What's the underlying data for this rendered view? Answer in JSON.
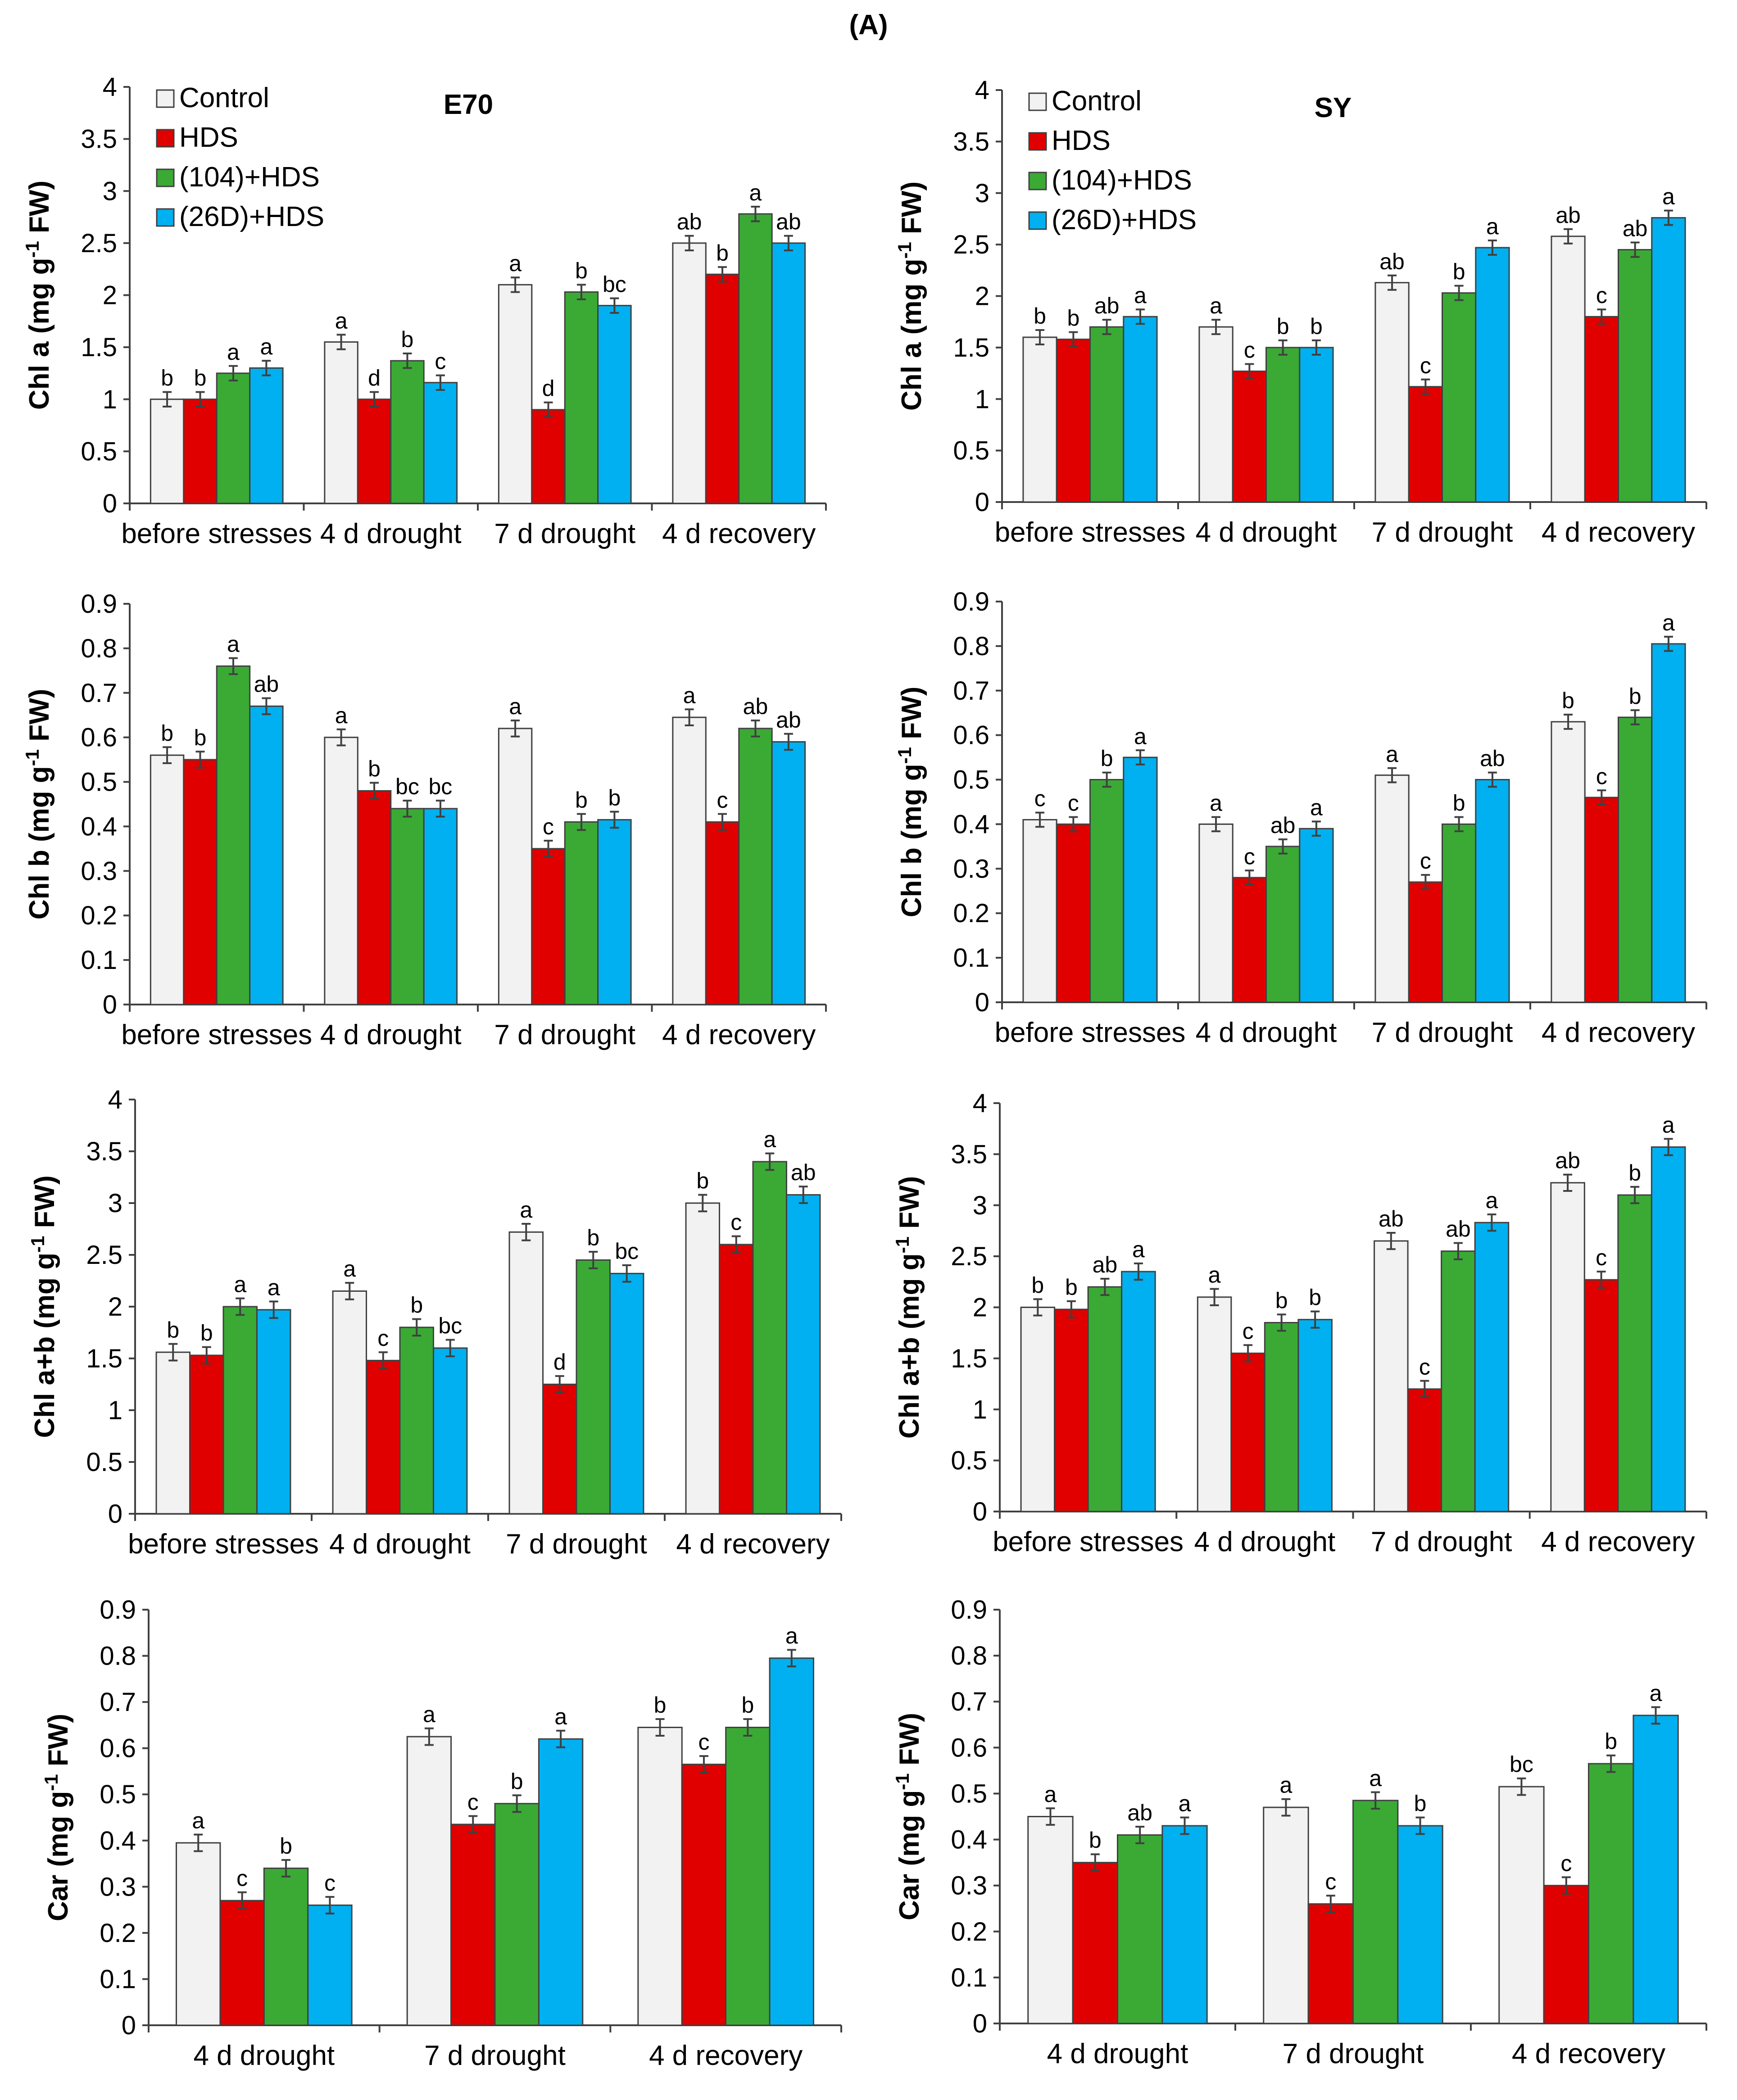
{
  "figure_title": "(A)",
  "colors": {
    "Control": "#f2f2f2",
    "HDS": "#e00000",
    "(104)+HDS": "#3aaa35",
    "(26D)+HDS": "#00b0f0",
    "axis": "#404040",
    "outline": "#404040"
  },
  "legend": [
    "Control",
    "HDS",
    "(104)+HDS",
    "(26D)+HDS"
  ],
  "chart_data": [
    {
      "type": "bar",
      "title": "E70",
      "ylabel": "Chl a (mg g-1 FW)",
      "ylim": [
        0,
        4
      ],
      "ystep": 0.5,
      "tick_decimals": 1,
      "err": 0.07,
      "legend": "top-left",
      "categories": [
        "before stresses",
        "4 d drought",
        "7 d drought",
        "4 d recovery"
      ],
      "series": [
        {
          "name": "Control",
          "values": [
            1.0,
            1.55,
            2.1,
            2.5
          ],
          "letters": [
            "b",
            "a",
            "a",
            "ab"
          ]
        },
        {
          "name": "HDS",
          "values": [
            1.0,
            1.0,
            0.9,
            2.2
          ],
          "letters": [
            "b",
            "d",
            "d",
            "b"
          ]
        },
        {
          "name": "(104)+HDS",
          "values": [
            1.25,
            1.37,
            2.03,
            2.78
          ],
          "letters": [
            "a",
            "b",
            "b",
            "a"
          ]
        },
        {
          "name": "(26D)+HDS",
          "values": [
            1.3,
            1.16,
            1.9,
            2.5
          ],
          "letters": [
            "a",
            "c",
            "bc",
            "ab"
          ]
        }
      ]
    },
    {
      "type": "bar",
      "title": "SY",
      "ylabel": "Chl a (mg g-1 FW)",
      "ylim": [
        0,
        4
      ],
      "ystep": 0.5,
      "tick_decimals": 1,
      "err": 0.07,
      "legend": "top-left",
      "categories": [
        "before stresses",
        "4 d drought",
        "7 d drought",
        "4 d recovery"
      ],
      "series": [
        {
          "name": "Control",
          "values": [
            1.6,
            1.7,
            2.13,
            2.58
          ],
          "letters": [
            "b",
            "a",
            "ab",
            "ab"
          ]
        },
        {
          "name": "HDS",
          "values": [
            1.58,
            1.27,
            1.12,
            1.8
          ],
          "letters": [
            "b",
            "c",
            "c",
            "c"
          ]
        },
        {
          "name": "(104)+HDS",
          "values": [
            1.7,
            1.5,
            2.03,
            2.45
          ],
          "letters": [
            "ab",
            "b",
            "b",
            "ab"
          ]
        },
        {
          "name": "(26D)+HDS",
          "values": [
            1.8,
            1.5,
            2.47,
            2.76
          ],
          "letters": [
            "a",
            "b",
            "a",
            "a"
          ]
        }
      ]
    },
    {
      "type": "bar",
      "title": "",
      "ylabel": "Chl b (mg g-1 FW)",
      "ylim": [
        0,
        0.9
      ],
      "ystep": 0.1,
      "tick_decimals": 1,
      "err": 0.018,
      "categories": [
        "before stresses",
        "4 d drought",
        "7 d drought",
        "4 d recovery"
      ],
      "series": [
        {
          "name": "Control",
          "values": [
            0.56,
            0.6,
            0.62,
            0.645
          ],
          "letters": [
            "b",
            "a",
            "a",
            "a"
          ]
        },
        {
          "name": "HDS",
          "values": [
            0.55,
            0.48,
            0.35,
            0.41
          ],
          "letters": [
            "b",
            "b",
            "c",
            "c"
          ]
        },
        {
          "name": "(104)+HDS",
          "values": [
            0.76,
            0.44,
            0.41,
            0.62
          ],
          "letters": [
            "a",
            "bc",
            "b",
            "ab"
          ]
        },
        {
          "name": "(26D)+HDS",
          "values": [
            0.67,
            0.44,
            0.415,
            0.59
          ],
          "letters": [
            "ab",
            "bc",
            "b",
            "ab"
          ]
        }
      ]
    },
    {
      "type": "bar",
      "title": "",
      "ylabel": "Chl b (mg g-1 FW)",
      "ylim": [
        0,
        0.9
      ],
      "ystep": 0.1,
      "tick_decimals": 1,
      "err": 0.016,
      "categories": [
        "before stresses",
        "4 d drought",
        "7 d drought",
        "4 d recovery"
      ],
      "series": [
        {
          "name": "Control",
          "values": [
            0.41,
            0.4,
            0.51,
            0.63
          ],
          "letters": [
            "c",
            "a",
            "a",
            "b"
          ]
        },
        {
          "name": "HDS",
          "values": [
            0.4,
            0.28,
            0.27,
            0.46
          ],
          "letters": [
            "c",
            "c",
            "c",
            "c"
          ]
        },
        {
          "name": "(104)+HDS",
          "values": [
            0.5,
            0.35,
            0.4,
            0.64
          ],
          "letters": [
            "b",
            "ab",
            "b",
            "b"
          ]
        },
        {
          "name": "(26D)+HDS",
          "values": [
            0.55,
            0.39,
            0.5,
            0.805
          ],
          "letters": [
            "a",
            "a",
            "ab",
            "a"
          ]
        }
      ]
    },
    {
      "type": "bar",
      "title": "",
      "ylabel": "Chl a+b (mg g-1 FW)",
      "ylim": [
        0,
        4
      ],
      "ystep": 0.5,
      "tick_decimals": 1,
      "err": 0.08,
      "categories": [
        "before stresses",
        "4 d drought",
        "7 d drought",
        "4 d recovery"
      ],
      "series": [
        {
          "name": "Control",
          "values": [
            1.56,
            2.15,
            2.72,
            3.0
          ],
          "letters": [
            "b",
            "a",
            "a",
            "b"
          ]
        },
        {
          "name": "HDS",
          "values": [
            1.53,
            1.48,
            1.25,
            2.6
          ],
          "letters": [
            "b",
            "c",
            "d",
            "c"
          ]
        },
        {
          "name": "(104)+HDS",
          "values": [
            2.0,
            1.8,
            2.45,
            3.4
          ],
          "letters": [
            "a",
            "b",
            "b",
            "a"
          ]
        },
        {
          "name": "(26D)+HDS",
          "values": [
            1.97,
            1.6,
            2.32,
            3.08
          ],
          "letters": [
            "a",
            "bc",
            "bc",
            "ab"
          ]
        }
      ]
    },
    {
      "type": "bar",
      "title": "",
      "ylabel": "Chl a+b (mg g-1 FW)",
      "ylim": [
        0,
        4
      ],
      "ystep": 0.5,
      "tick_decimals": 1,
      "err": 0.08,
      "categories": [
        "before stresses",
        "4 d drought",
        "7 d drought",
        "4 d recovery"
      ],
      "series": [
        {
          "name": "Control",
          "values": [
            2.0,
            2.1,
            2.65,
            3.22
          ],
          "letters": [
            "b",
            "a",
            "ab",
            "ab"
          ]
        },
        {
          "name": "HDS",
          "values": [
            1.98,
            1.55,
            1.2,
            2.27
          ],
          "letters": [
            "b",
            "c",
            "c",
            "c"
          ]
        },
        {
          "name": "(104)+HDS",
          "values": [
            2.2,
            1.85,
            2.55,
            3.1
          ],
          "letters": [
            "ab",
            "b",
            "ab",
            "b"
          ]
        },
        {
          "name": "(26D)+HDS",
          "values": [
            2.35,
            1.88,
            2.83,
            3.57
          ],
          "letters": [
            "a",
            "b",
            "a",
            "a"
          ]
        }
      ]
    },
    {
      "type": "bar",
      "title": "",
      "ylabel": "Car (mg g-1 FW)",
      "ylim": [
        0,
        0.9
      ],
      "ystep": 0.1,
      "tick_decimals": 1,
      "err": 0.018,
      "categories": [
        "4 d drought",
        "7 d drought",
        "4 d recovery"
      ],
      "series": [
        {
          "name": "Control",
          "values": [
            0.395,
            0.625,
            0.645
          ],
          "letters": [
            "a",
            "a",
            "b"
          ]
        },
        {
          "name": "HDS",
          "values": [
            0.27,
            0.435,
            0.565
          ],
          "letters": [
            "c",
            "c",
            "c"
          ]
        },
        {
          "name": "(104)+HDS",
          "values": [
            0.34,
            0.48,
            0.645
          ],
          "letters": [
            "b",
            "b",
            "b"
          ]
        },
        {
          "name": "(26D)+HDS",
          "values": [
            0.26,
            0.62,
            0.795
          ],
          "letters": [
            "c",
            "a",
            "a"
          ]
        }
      ]
    },
    {
      "type": "bar",
      "title": "",
      "ylabel": "Car (mg g-1 FW)",
      "ylim": [
        0,
        0.9
      ],
      "ystep": 0.1,
      "tick_decimals": 1,
      "err": 0.018,
      "categories": [
        "4 d drought",
        "7 d drought",
        "4 d recovery"
      ],
      "series": [
        {
          "name": "Control",
          "values": [
            0.45,
            0.47,
            0.515
          ],
          "letters": [
            "a",
            "a",
            "bc"
          ]
        },
        {
          "name": "HDS",
          "values": [
            0.35,
            0.26,
            0.3
          ],
          "letters": [
            "b",
            "c",
            "c"
          ]
        },
        {
          "name": "(104)+HDS",
          "values": [
            0.41,
            0.485,
            0.565
          ],
          "letters": [
            "ab",
            "a",
            "b"
          ]
        },
        {
          "name": "(26D)+HDS",
          "values": [
            0.43,
            0.43,
            0.67
          ],
          "letters": [
            "a",
            "b",
            "a"
          ]
        }
      ]
    }
  ]
}
